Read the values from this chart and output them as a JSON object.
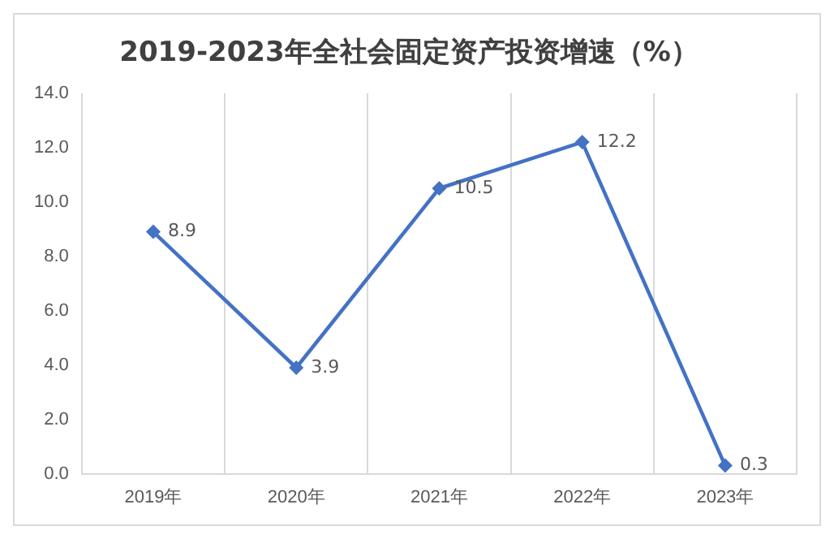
{
  "chart_data": {
    "type": "line",
    "title": "2019-2023年全社会固定资产投资增速（%）",
    "categories": [
      "2019年",
      "2020年",
      "2021年",
      "2022年",
      "2023年"
    ],
    "values": [
      8.9,
      3.9,
      10.5,
      12.2,
      0.3
    ],
    "color": "#4472c4",
    "ylim": [
      0,
      14
    ],
    "yticks": [
      {
        "value": 0,
        "label": "0.0"
      },
      {
        "value": 2,
        "label": "2.0"
      },
      {
        "value": 4,
        "label": "4.0"
      },
      {
        "value": 6,
        "label": "6.0"
      },
      {
        "value": 8,
        "label": "8.0"
      },
      {
        "value": 10,
        "label": "10.0"
      },
      {
        "value": 12,
        "label": "12.0"
      },
      {
        "value": 14,
        "label": "14.0"
      }
    ],
    "grid": "x",
    "marker": "diamond",
    "line_style": "solid",
    "data_labels": true,
    "legend": false
  }
}
